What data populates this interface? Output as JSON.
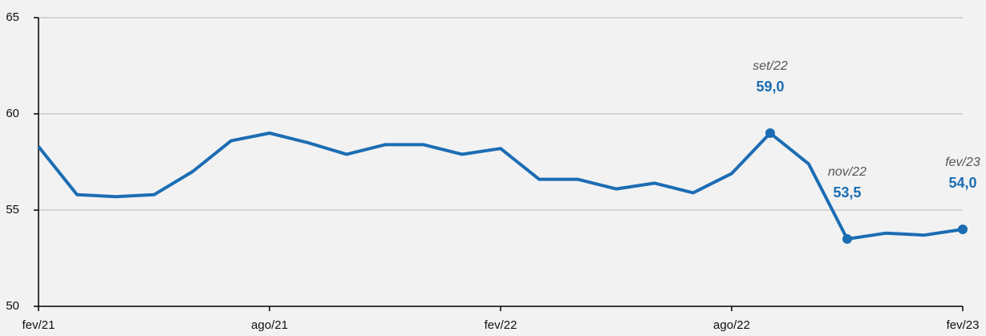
{
  "chart_data": {
    "type": "line",
    "categories": [
      "fev/21",
      null,
      null,
      null,
      null,
      null,
      "ago/21",
      null,
      null,
      null,
      null,
      null,
      "fev/22",
      null,
      null,
      null,
      null,
      null,
      "ago/22",
      null,
      null,
      null,
      null,
      null,
      "fev/23"
    ],
    "series": [
      {
        "color": "#1b6db3",
        "values": [
          58.3,
          55.8,
          55.7,
          55.8,
          57.0,
          58.6,
          59.0,
          58.5,
          57.9,
          58.4,
          58.4,
          57.9,
          58.2,
          56.6,
          56.6,
          56.1,
          56.4,
          55.9,
          56.9,
          59.0,
          57.4,
          53.5,
          53.8,
          53.7,
          54.0
        ],
        "value_labels": [
          null,
          null,
          null,
          null,
          null,
          null,
          null,
          null,
          null,
          null,
          null,
          null,
          null,
          null,
          null,
          null,
          null,
          null,
          null,
          "59,0",
          null,
          "53,5",
          null,
          null,
          "54,0"
        ],
        "point_labels": [
          null,
          null,
          null,
          null,
          null,
          null,
          null,
          null,
          null,
          null,
          null,
          null,
          null,
          null,
          null,
          null,
          null,
          null,
          null,
          "set/22",
          null,
          "nov/22",
          null,
          null,
          "fev/23"
        ]
      }
    ],
    "ylim": [
      50,
      65
    ],
    "yticks": [
      50,
      55,
      60,
      65
    ],
    "grid": true
  }
}
